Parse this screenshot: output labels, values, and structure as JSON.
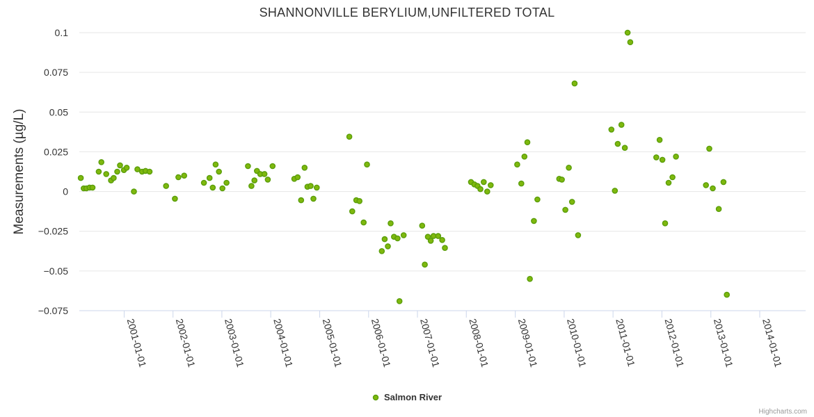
{
  "chart_data": {
    "type": "scatter",
    "title": "SHANNONVILLE BERYLIUM,UNFILTERED TOTAL",
    "ylabel": "Measurements (µg/L)",
    "xlabel": "",
    "x_type": "datetime",
    "xlim": [
      "2000-02-01",
      "2014-12-10"
    ],
    "ylim": [
      -0.075,
      0.1
    ],
    "y_ticks": [
      "0.1",
      "0.075",
      "0.05",
      "0.025",
      "0",
      "−0.025",
      "−0.05",
      "−0.075"
    ],
    "x_ticks": [
      "2001-01-01",
      "2002-01-01",
      "2003-01-01",
      "2004-01-01",
      "2005-01-01",
      "2006-01-01",
      "2007-01-01",
      "2008-01-01",
      "2009-01-01",
      "2010-01-01",
      "2011-01-01",
      "2012-01-01",
      "2013-01-01",
      "2014-01-01"
    ],
    "grid": true,
    "legend_position": "bottom-center",
    "series": [
      {
        "name": "Salmon River",
        "color": "#5a9e0a",
        "points": [
          [
            "2000-02-12",
            0.0085
          ],
          [
            "2000-03-05",
            0.002
          ],
          [
            "2000-03-25",
            0.002
          ],
          [
            "2000-04-18",
            0.0025
          ],
          [
            "2000-05-10",
            0.0025
          ],
          [
            "2000-06-25",
            0.0125
          ],
          [
            "2000-07-15",
            0.0185
          ],
          [
            "2000-08-20",
            0.011
          ],
          [
            "2000-09-25",
            0.007
          ],
          [
            "2000-10-15",
            0.0085
          ],
          [
            "2000-11-10",
            0.0125
          ],
          [
            "2000-12-01",
            0.0165
          ],
          [
            "2000-12-30",
            0.0135
          ],
          [
            "2001-01-20",
            0.015
          ],
          [
            "2001-03-15",
            0.0
          ],
          [
            "2001-04-10",
            0.014
          ],
          [
            "2001-05-15",
            0.0125
          ],
          [
            "2001-06-10",
            0.013
          ],
          [
            "2001-07-10",
            0.0125
          ],
          [
            "2001-11-10",
            0.0035
          ],
          [
            "2002-01-15",
            -0.0045
          ],
          [
            "2002-02-10",
            0.009
          ],
          [
            "2002-03-25",
            0.01
          ],
          [
            "2002-08-20",
            0.0055
          ],
          [
            "2002-10-01",
            0.0085
          ],
          [
            "2002-10-25",
            0.0025
          ],
          [
            "2002-11-15",
            0.017
          ],
          [
            "2002-12-10",
            0.0125
          ],
          [
            "2003-01-05",
            0.002
          ],
          [
            "2003-02-05",
            0.0055
          ],
          [
            "2003-07-15",
            0.016
          ],
          [
            "2003-08-10",
            0.0035
          ],
          [
            "2003-09-01",
            0.007
          ],
          [
            "2003-09-20",
            0.013
          ],
          [
            "2003-10-15",
            0.011
          ],
          [
            "2003-11-15",
            0.011
          ],
          [
            "2003-12-10",
            0.0075
          ],
          [
            "2004-01-15",
            0.016
          ],
          [
            "2004-06-25",
            0.008
          ],
          [
            "2004-07-20",
            0.009
          ],
          [
            "2004-08-15",
            -0.0055
          ],
          [
            "2004-09-10",
            0.015
          ],
          [
            "2004-10-01",
            0.003
          ],
          [
            "2004-10-25",
            0.0035
          ],
          [
            "2004-11-15",
            -0.0045
          ],
          [
            "2004-12-10",
            0.0025
          ],
          [
            "2005-08-10",
            0.0345
          ],
          [
            "2005-09-01",
            -0.0125
          ],
          [
            "2005-10-01",
            -0.0055
          ],
          [
            "2005-10-25",
            -0.006
          ],
          [
            "2005-11-25",
            -0.0195
          ],
          [
            "2005-12-20",
            0.017
          ],
          [
            "2006-04-10",
            -0.0375
          ],
          [
            "2006-05-01",
            -0.03
          ],
          [
            "2006-05-25",
            -0.0345
          ],
          [
            "2006-06-15",
            -0.02
          ],
          [
            "2006-07-10",
            -0.0285
          ],
          [
            "2006-08-05",
            -0.0295
          ],
          [
            "2006-08-20",
            -0.069
          ],
          [
            "2006-09-20",
            -0.0275
          ],
          [
            "2007-02-05",
            -0.0215
          ],
          [
            "2007-02-25",
            -0.046
          ],
          [
            "2007-03-20",
            -0.0285
          ],
          [
            "2007-04-10",
            -0.031
          ],
          [
            "2007-05-01",
            -0.028
          ],
          [
            "2007-06-05",
            -0.028
          ],
          [
            "2007-07-05",
            -0.0305
          ],
          [
            "2007-07-25",
            -0.0355
          ],
          [
            "2008-02-05",
            0.006
          ],
          [
            "2008-03-01",
            0.0045
          ],
          [
            "2008-03-25",
            0.0035
          ],
          [
            "2008-04-15",
            0.0015
          ],
          [
            "2008-05-10",
            0.006
          ],
          [
            "2008-06-05",
            0.0
          ],
          [
            "2008-07-01",
            0.004
          ],
          [
            "2009-01-15",
            0.017
          ],
          [
            "2009-02-15",
            0.005
          ],
          [
            "2009-03-10",
            0.022
          ],
          [
            "2009-04-01",
            0.031
          ],
          [
            "2009-04-20",
            -0.055
          ],
          [
            "2009-05-20",
            -0.0185
          ],
          [
            "2009-06-15",
            -0.005
          ],
          [
            "2009-11-25",
            0.008
          ],
          [
            "2009-12-15",
            0.0075
          ],
          [
            "2010-01-10",
            -0.0115
          ],
          [
            "2010-02-05",
            0.015
          ],
          [
            "2010-03-01",
            -0.0065
          ],
          [
            "2010-03-20",
            0.068
          ],
          [
            "2010-04-15",
            -0.0275
          ],
          [
            "2010-12-20",
            0.039
          ],
          [
            "2011-01-15",
            0.0005
          ],
          [
            "2011-02-05",
            0.03
          ],
          [
            "2011-03-05",
            0.042
          ],
          [
            "2011-03-30",
            0.0275
          ],
          [
            "2011-04-20",
            0.1
          ],
          [
            "2011-05-10",
            0.094
          ],
          [
            "2011-11-20",
            0.0215
          ],
          [
            "2011-12-15",
            0.0325
          ],
          [
            "2012-01-05",
            0.02
          ],
          [
            "2012-01-25",
            -0.02
          ],
          [
            "2012-02-20",
            0.0055
          ],
          [
            "2012-03-20",
            0.009
          ],
          [
            "2012-04-15",
            0.022
          ],
          [
            "2012-11-25",
            0.004
          ],
          [
            "2012-12-20",
            0.027
          ],
          [
            "2013-01-15",
            0.002
          ],
          [
            "2013-03-01",
            -0.011
          ],
          [
            "2013-04-05",
            0.006
          ],
          [
            "2013-04-30",
            -0.065
          ]
        ]
      }
    ]
  },
  "credits": "Highcharts.com"
}
